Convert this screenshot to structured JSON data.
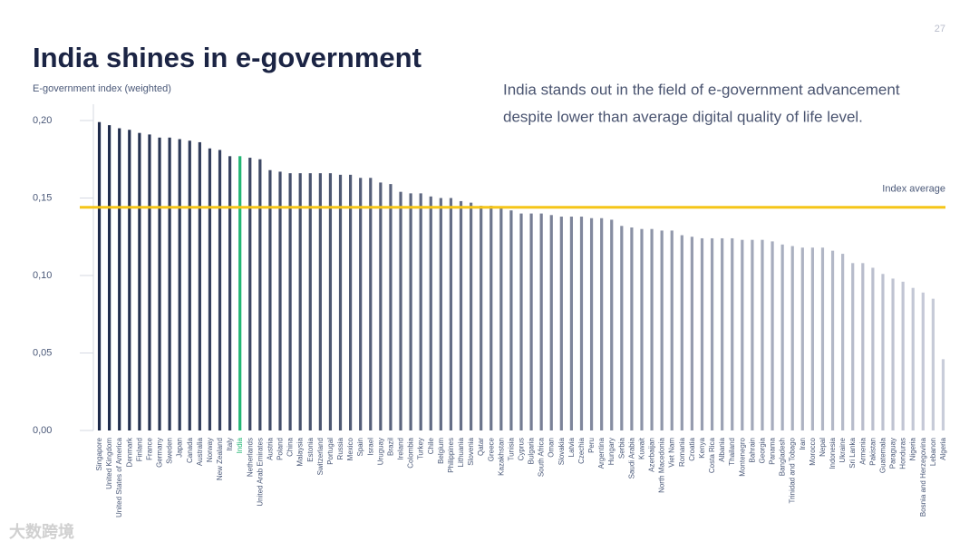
{
  "page_number": "27",
  "watermark": "大数跨境",
  "chart_data": {
    "type": "bar",
    "title": "India shines in e-government",
    "y_label": "E-government index (weighted)",
    "description": [
      "India stands out in the field of e-government advancement",
      "despite lower than average digital quality of life level."
    ],
    "categories": [
      "Singapore",
      "United Kingdom",
      "United States of America",
      "Denmark",
      "Finland",
      "France",
      "Germany",
      "Sweden",
      "Japan",
      "Canada",
      "Australia",
      "Norway",
      "New Zealand",
      "Italy",
      "India",
      "Netherlands",
      "United Arab Emirates",
      "Austria",
      "Poland",
      "China",
      "Malaysia",
      "Estonia",
      "Switzerland",
      "Portugal",
      "Russia",
      "Mexico",
      "Spain",
      "Israel",
      "Uruguay",
      "Brazil",
      "Ireland",
      "Colombia",
      "Turkey",
      "Chile",
      "Belgium",
      "Philippines",
      "Lithuania",
      "Slovenia",
      "Qatar",
      "Greece",
      "Kazakhstan",
      "Tunisia",
      "Cyprus",
      "Bulgaria",
      "South Africa",
      "Oman",
      "Slovakia",
      "Latvia",
      "Czechia",
      "Peru",
      "Argentina",
      "Hungary",
      "Serbia",
      "Saudi Arabia",
      "Kuwait",
      "Azerbaijan",
      "North Macedonia",
      "Viet Nam",
      "Romania",
      "Croatia",
      "Kenya",
      "Costa Rica",
      "Albania",
      "Thailand",
      "Montenegro",
      "Bahrain",
      "Georgia",
      "Panama",
      "Bangladesh",
      "Trinidad and Tobago",
      "Iran",
      "Morocco",
      "Nepal",
      "Indonesia",
      "Ukraine",
      "Sri Lanka",
      "Armenia",
      "Pakistan",
      "Guatemala",
      "Paraguay",
      "Honduras",
      "Nigeria",
      "Bosnia and Herzegovina",
      "Lebanon",
      "Algeria"
    ],
    "values": [
      0.199,
      0.197,
      0.195,
      0.194,
      0.192,
      0.191,
      0.189,
      0.189,
      0.188,
      0.187,
      0.186,
      0.182,
      0.181,
      0.177,
      0.177,
      0.176,
      0.175,
      0.168,
      0.167,
      0.166,
      0.166,
      0.166,
      0.166,
      0.166,
      0.165,
      0.165,
      0.163,
      0.163,
      0.16,
      0.159,
      0.154,
      0.153,
      0.153,
      0.151,
      0.15,
      0.15,
      0.148,
      0.147,
      0.145,
      0.145,
      0.144,
      0.142,
      0.14,
      0.14,
      0.14,
      0.139,
      0.138,
      0.138,
      0.138,
      0.137,
      0.137,
      0.136,
      0.132,
      0.131,
      0.13,
      0.13,
      0.129,
      0.129,
      0.126,
      0.125,
      0.124,
      0.124,
      0.124,
      0.124,
      0.123,
      0.123,
      0.123,
      0.122,
      0.12,
      0.119,
      0.118,
      0.118,
      0.118,
      0.116,
      0.114,
      0.108,
      0.108,
      0.105,
      0.101,
      0.098,
      0.096,
      0.092,
      0.089,
      0.085,
      0.046
    ],
    "color_scale": [
      "#1e2a4a",
      "#c9cdda"
    ],
    "highlight": {
      "category": "India",
      "color": "#22b573"
    },
    "average": {
      "label": "Index average",
      "value": 0.144,
      "color": "#f5c518"
    },
    "ylim": [
      0,
      0.2
    ],
    "yticks": [
      {
        "value": 0,
        "label": "0,00"
      },
      {
        "value": 0.05,
        "label": "0,05"
      },
      {
        "value": 0.1,
        "label": "0,10"
      },
      {
        "value": 0.15,
        "label": "0,15"
      },
      {
        "value": 0.2,
        "label": "0,20"
      }
    ]
  }
}
